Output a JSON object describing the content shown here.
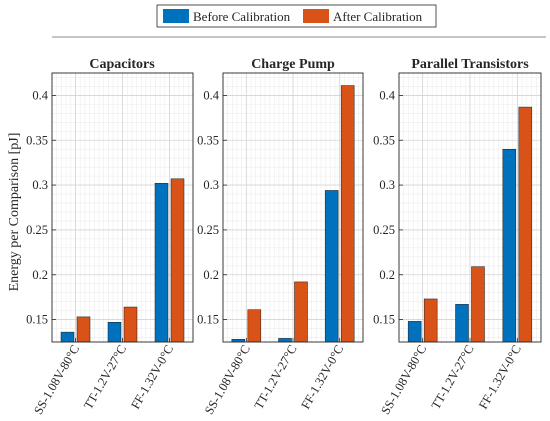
{
  "chart_data": {
    "type": "bar",
    "ylabel": "Energy per Comparison [pJ]",
    "ylim": [
      0.125,
      0.425
    ],
    "yticks": [
      0.15,
      0.2,
      0.25,
      0.3,
      0.35,
      0.4
    ],
    "ytick_labels": [
      "0.15",
      "0.2",
      "0.25",
      "0.3",
      "0.35",
      "0.4"
    ],
    "grid": true,
    "legend": {
      "placement": "top-center",
      "entries": [
        {
          "name": "Before Calibration",
          "color": "#0072BD"
        },
        {
          "name": "After Calibration",
          "color": "#D95319"
        }
      ]
    },
    "categories": [
      "SS-1.08V-80°C",
      "TT-1.2V-27°C",
      "FF-1.32V-0°C"
    ],
    "panels": [
      {
        "title": "Capacitors",
        "series": [
          {
            "name": "Before Calibration",
            "values": [
              0.136,
              0.147,
              0.302
            ]
          },
          {
            "name": "After Calibration",
            "values": [
              0.153,
              0.164,
              0.307
            ]
          }
        ]
      },
      {
        "title": "Charge Pump",
        "series": [
          {
            "name": "Before Calibration",
            "values": [
              0.128,
              0.129,
              0.294
            ]
          },
          {
            "name": "After Calibration",
            "values": [
              0.161,
              0.192,
              0.411
            ]
          }
        ]
      },
      {
        "title": "Parallel Transistors",
        "series": [
          {
            "name": "Before Calibration",
            "values": [
              0.148,
              0.167,
              0.34
            ]
          },
          {
            "name": "After Calibration",
            "values": [
              0.173,
              0.209,
              0.387
            ]
          }
        ]
      }
    ]
  }
}
